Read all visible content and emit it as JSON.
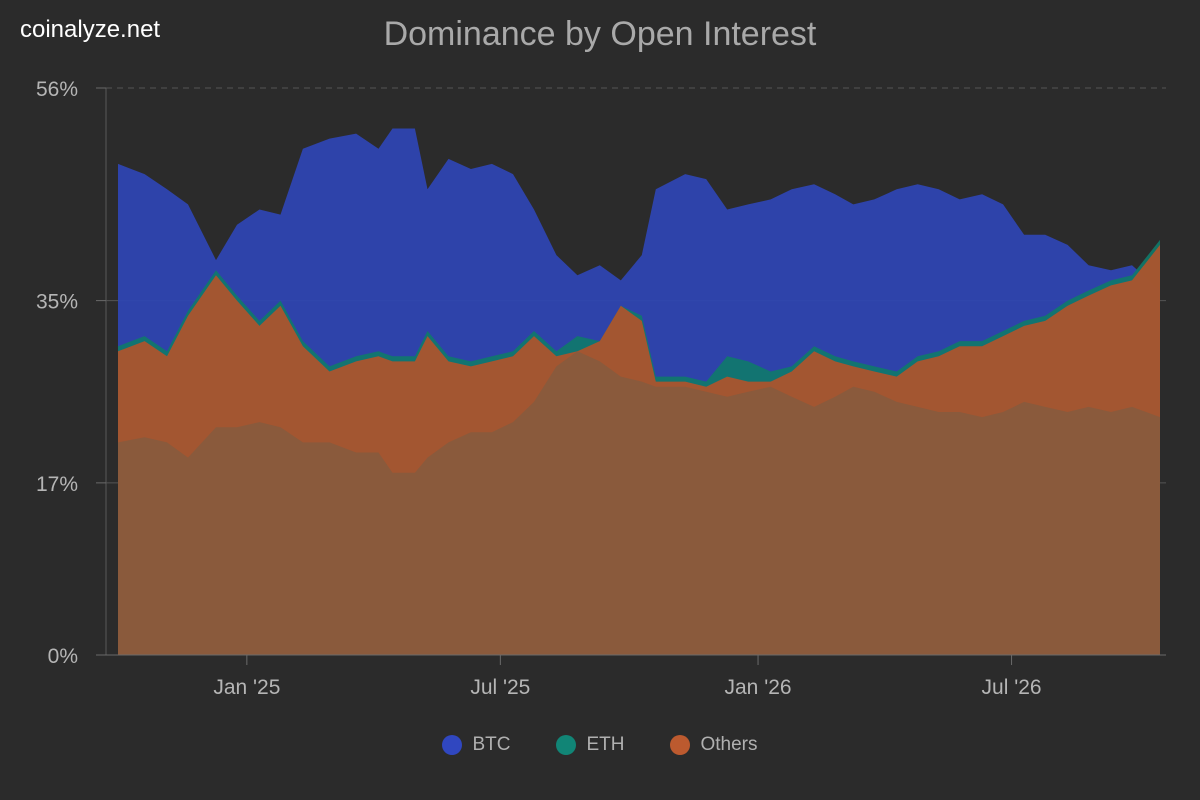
{
  "watermark": "coinalyze.net",
  "chart_data": {
    "type": "area",
    "stacked": true,
    "title": "Dominance by Open Interest",
    "xlabel": "",
    "ylabel": "",
    "ylim": [
      0,
      56
    ],
    "y_ticks": [
      "0%",
      "17%",
      "35%",
      "56%"
    ],
    "y_tick_values": [
      0,
      17,
      35,
      56
    ],
    "x_tick_labels": [
      "Jan '25",
      "Jul '25",
      "Jan '26",
      "Jul '26"
    ],
    "x_tick_dates": [
      "2025-01-01",
      "2025-07-01",
      "2026-01-01",
      "2026-07-01"
    ],
    "x_range": [
      "2024-10-01",
      "2026-10-15"
    ],
    "grid": "horizontal-dashed",
    "legend_position": "bottom",
    "series": [
      {
        "name": "BTC",
        "color": "#2f45b5",
        "points": [
          [
            "2024-10-01",
            48.5
          ],
          [
            "2024-10-20",
            47.5
          ],
          [
            "2024-11-05",
            46.0
          ],
          [
            "2024-11-20",
            44.5
          ],
          [
            "2024-12-10",
            39.0
          ],
          [
            "2024-12-25",
            42.5
          ],
          [
            "2025-01-10",
            44.0
          ],
          [
            "2025-01-25",
            43.5
          ],
          [
            "2025-02-10",
            50.0
          ],
          [
            "2025-03-01",
            51.0
          ],
          [
            "2025-03-20",
            51.5
          ],
          [
            "2025-04-05",
            50.0
          ],
          [
            "2025-04-15",
            52.0
          ],
          [
            "2025-05-01",
            52.0
          ],
          [
            "2025-05-10",
            46.0
          ],
          [
            "2025-05-25",
            49.0
          ],
          [
            "2025-06-10",
            48.0
          ],
          [
            "2025-06-25",
            48.5
          ],
          [
            "2025-07-10",
            47.5
          ],
          [
            "2025-07-25",
            44.0
          ],
          [
            "2025-08-10",
            39.5
          ],
          [
            "2025-08-25",
            37.5
          ],
          [
            "2025-09-10",
            38.5
          ],
          [
            "2025-09-25",
            37.0
          ],
          [
            "2025-10-10",
            39.5
          ],
          [
            "2025-10-20",
            46.0
          ],
          [
            "2025-11-10",
            47.5
          ],
          [
            "2025-11-25",
            47.0
          ],
          [
            "2025-12-10",
            44.0
          ],
          [
            "2025-12-25",
            44.5
          ],
          [
            "2026-01-10",
            45.0
          ],
          [
            "2026-01-25",
            46.0
          ],
          [
            "2026-02-10",
            46.5
          ],
          [
            "2026-02-25",
            45.5
          ],
          [
            "2026-03-10",
            44.5
          ],
          [
            "2026-03-25",
            45.0
          ],
          [
            "2026-04-10",
            46.0
          ],
          [
            "2026-04-25",
            46.5
          ],
          [
            "2026-05-10",
            46.0
          ],
          [
            "2026-05-25",
            45.0
          ],
          [
            "2026-06-10",
            45.5
          ],
          [
            "2026-06-25",
            44.5
          ],
          [
            "2026-07-10",
            41.5
          ],
          [
            "2026-07-25",
            41.5
          ],
          [
            "2026-08-10",
            40.5
          ],
          [
            "2026-08-25",
            38.5
          ],
          [
            "2026-09-10",
            38.0
          ],
          [
            "2026-09-25",
            38.5
          ],
          [
            "2026-10-15",
            36.0
          ]
        ]
      },
      {
        "name": "ETH",
        "color": "#0f7a6a",
        "points": [
          [
            "2024-10-01",
            30.5
          ],
          [
            "2024-10-20",
            31.5
          ],
          [
            "2024-11-05",
            30.0
          ],
          [
            "2024-11-20",
            34.0
          ],
          [
            "2024-12-10",
            38.0
          ],
          [
            "2024-12-25",
            35.5
          ],
          [
            "2025-01-10",
            33.0
          ],
          [
            "2025-01-25",
            35.0
          ],
          [
            "2025-02-10",
            31.0
          ],
          [
            "2025-03-01",
            28.5
          ],
          [
            "2025-03-20",
            29.5
          ],
          [
            "2025-04-05",
            30.0
          ],
          [
            "2025-04-15",
            29.5
          ],
          [
            "2025-05-01",
            29.5
          ],
          [
            "2025-05-10",
            32.0
          ],
          [
            "2025-05-25",
            29.5
          ],
          [
            "2025-06-10",
            29.0
          ],
          [
            "2025-06-25",
            29.5
          ],
          [
            "2025-07-10",
            30.0
          ],
          [
            "2025-07-25",
            32.0
          ],
          [
            "2025-08-10",
            30.0
          ],
          [
            "2025-08-25",
            31.5
          ],
          [
            "2025-09-10",
            31.0
          ],
          [
            "2025-09-25",
            34.5
          ],
          [
            "2025-10-10",
            33.5
          ],
          [
            "2025-10-20",
            27.5
          ],
          [
            "2025-11-10",
            27.5
          ],
          [
            "2025-11-25",
            27.0
          ],
          [
            "2025-12-10",
            29.5
          ],
          [
            "2025-12-25",
            29.0
          ],
          [
            "2026-01-10",
            28.0
          ],
          [
            "2026-01-25",
            28.5
          ],
          [
            "2026-02-10",
            30.5
          ],
          [
            "2026-02-25",
            29.5
          ],
          [
            "2026-03-10",
            29.0
          ],
          [
            "2026-03-25",
            28.5
          ],
          [
            "2026-04-10",
            28.0
          ],
          [
            "2026-04-25",
            29.5
          ],
          [
            "2026-05-10",
            30.0
          ],
          [
            "2026-05-25",
            31.0
          ],
          [
            "2026-06-10",
            31.0
          ],
          [
            "2026-06-25",
            32.0
          ],
          [
            "2026-07-10",
            33.0
          ],
          [
            "2026-07-25",
            33.5
          ],
          [
            "2026-08-10",
            35.0
          ],
          [
            "2026-08-25",
            36.0
          ],
          [
            "2026-09-10",
            37.0
          ],
          [
            "2026-09-25",
            37.5
          ],
          [
            "2026-10-15",
            41.0
          ]
        ]
      },
      {
        "name": "Others",
        "color": "#b4532a",
        "points": [
          [
            "2024-10-01",
            30.0
          ],
          [
            "2024-10-20",
            31.0
          ],
          [
            "2024-11-05",
            29.5
          ],
          [
            "2024-11-20",
            33.5
          ],
          [
            "2024-12-10",
            37.5
          ],
          [
            "2024-12-25",
            35.0
          ],
          [
            "2025-01-10",
            32.5
          ],
          [
            "2025-01-25",
            34.5
          ],
          [
            "2025-02-10",
            30.5
          ],
          [
            "2025-03-01",
            28.0
          ],
          [
            "2025-03-20",
            29.0
          ],
          [
            "2025-04-05",
            29.5
          ],
          [
            "2025-04-15",
            29.0
          ],
          [
            "2025-05-01",
            29.0
          ],
          [
            "2025-05-10",
            31.5
          ],
          [
            "2025-05-25",
            29.0
          ],
          [
            "2025-06-10",
            28.5
          ],
          [
            "2025-06-25",
            29.0
          ],
          [
            "2025-07-10",
            29.5
          ],
          [
            "2025-07-25",
            31.5
          ],
          [
            "2025-08-10",
            29.5
          ],
          [
            "2025-08-25",
            30.0
          ],
          [
            "2025-09-10",
            31.0
          ],
          [
            "2025-09-25",
            34.5
          ],
          [
            "2025-10-10",
            33.0
          ],
          [
            "2025-10-20",
            27.0
          ],
          [
            "2025-11-10",
            27.0
          ],
          [
            "2025-11-25",
            26.5
          ],
          [
            "2025-12-10",
            27.5
          ],
          [
            "2025-12-25",
            27.0
          ],
          [
            "2026-01-10",
            27.0
          ],
          [
            "2026-01-25",
            28.0
          ],
          [
            "2026-02-10",
            30.0
          ],
          [
            "2026-02-25",
            29.0
          ],
          [
            "2026-03-10",
            28.5
          ],
          [
            "2026-03-25",
            28.0
          ],
          [
            "2026-04-10",
            27.5
          ],
          [
            "2026-04-25",
            29.0
          ],
          [
            "2026-05-10",
            29.5
          ],
          [
            "2026-05-25",
            30.5
          ],
          [
            "2026-06-10",
            30.5
          ],
          [
            "2026-06-25",
            31.5
          ],
          [
            "2026-07-10",
            32.5
          ],
          [
            "2026-07-25",
            33.0
          ],
          [
            "2026-08-10",
            34.5
          ],
          [
            "2026-08-25",
            35.5
          ],
          [
            "2026-09-10",
            36.5
          ],
          [
            "2026-09-25",
            37.0
          ],
          [
            "2026-10-15",
            40.5
          ]
        ]
      },
      {
        "name": "",
        "color": "#8a5a3c",
        "points": [
          [
            "2024-10-01",
            21.0
          ],
          [
            "2024-10-20",
            21.5
          ],
          [
            "2024-11-05",
            21.0
          ],
          [
            "2024-11-20",
            19.5
          ],
          [
            "2024-12-10",
            22.5
          ],
          [
            "2024-12-25",
            22.5
          ],
          [
            "2025-01-10",
            23.0
          ],
          [
            "2025-01-25",
            22.5
          ],
          [
            "2025-02-10",
            21.0
          ],
          [
            "2025-03-01",
            21.0
          ],
          [
            "2025-03-20",
            20.0
          ],
          [
            "2025-04-05",
            20.0
          ],
          [
            "2025-04-15",
            18.0
          ],
          [
            "2025-05-01",
            18.0
          ],
          [
            "2025-05-10",
            19.5
          ],
          [
            "2025-05-25",
            21.0
          ],
          [
            "2025-06-10",
            22.0
          ],
          [
            "2025-06-25",
            22.0
          ],
          [
            "2025-07-10",
            23.0
          ],
          [
            "2025-07-25",
            25.0
          ],
          [
            "2025-08-10",
            28.5
          ],
          [
            "2025-08-25",
            30.0
          ],
          [
            "2025-09-10",
            29.0
          ],
          [
            "2025-09-25",
            27.5
          ],
          [
            "2025-10-10",
            27.0
          ],
          [
            "2025-10-20",
            26.5
          ],
          [
            "2025-11-10",
            26.5
          ],
          [
            "2025-11-25",
            26.0
          ],
          [
            "2025-12-10",
            25.5
          ],
          [
            "2025-12-25",
            26.0
          ],
          [
            "2026-01-10",
            26.5
          ],
          [
            "2026-01-25",
            25.5
          ],
          [
            "2026-02-10",
            24.5
          ],
          [
            "2026-02-25",
            25.5
          ],
          [
            "2026-03-10",
            26.5
          ],
          [
            "2026-03-25",
            26.0
          ],
          [
            "2026-04-10",
            25.0
          ],
          [
            "2026-04-25",
            24.5
          ],
          [
            "2026-05-10",
            24.0
          ],
          [
            "2026-05-25",
            24.0
          ],
          [
            "2026-06-10",
            23.5
          ],
          [
            "2026-06-25",
            24.0
          ],
          [
            "2026-07-10",
            25.0
          ],
          [
            "2026-07-25",
            24.5
          ],
          [
            "2026-08-10",
            24.0
          ],
          [
            "2026-08-25",
            24.5
          ],
          [
            "2026-09-10",
            24.0
          ],
          [
            "2026-09-25",
            24.5
          ],
          [
            "2026-10-15",
            23.5
          ]
        ]
      }
    ],
    "legend": [
      {
        "name": "BTC",
        "color": "#3047c0"
      },
      {
        "name": "ETH",
        "color": "#118576"
      },
      {
        "name": "Others",
        "color": "#bc5a2f"
      }
    ]
  }
}
